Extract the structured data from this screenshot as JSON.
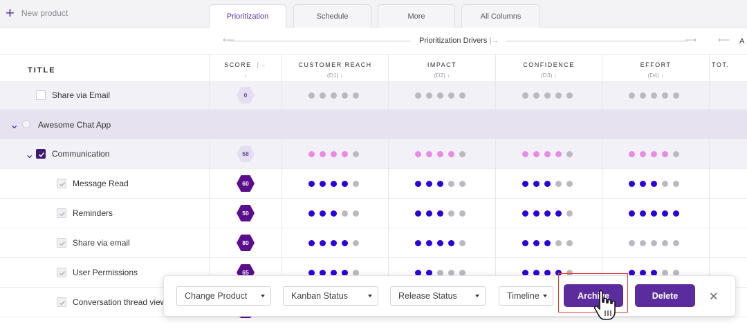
{
  "toolbar": {
    "new_product": "New product",
    "plus_icon": "plus-icon"
  },
  "tabs": [
    {
      "label": "Prioritization",
      "active": true
    },
    {
      "label": "Schedule",
      "active": false
    },
    {
      "label": "More",
      "active": false
    },
    {
      "label": "All Columns",
      "active": false
    }
  ],
  "drivers": {
    "label": "Prioritization Drivers",
    "label_arrow": "|→",
    "next_group_initial": "A"
  },
  "columns": {
    "title": "TITLE",
    "score": {
      "label": "SCORE",
      "arrow": "|→",
      "sort": "↓"
    },
    "drivers": [
      {
        "label": "CUSTOMER REACH",
        "sub": "(D1) ↓"
      },
      {
        "label": "IMPACT",
        "sub": "(D2) ↓"
      },
      {
        "label": "CONFIDENCE",
        "sub": "(D3) ↓"
      },
      {
        "label": "EFFORT",
        "sub": "(D4) ↓"
      }
    ],
    "total": "TOT."
  },
  "colors": {
    "accent": "#5b2c9e",
    "dot_blue": "#2b00e0",
    "dot_pink": "#e88be8",
    "dot_grey": "#b9b9c0",
    "hex_dark": "#5a0d8c",
    "hex_light": "#e4def0"
  },
  "rows": [
    {
      "kind": "item-partial",
      "title": "Share via Email",
      "score": "0",
      "ratings": [
        0,
        0,
        0,
        0
      ]
    },
    {
      "kind": "group",
      "title": "Awesome Chat App"
    },
    {
      "kind": "subgroup",
      "title": "Communication",
      "score": "58",
      "ratings": [
        4,
        4,
        4,
        4
      ]
    },
    {
      "kind": "item",
      "title": "Message Read",
      "score": "60",
      "ratings": [
        4,
        3,
        3,
        3
      ]
    },
    {
      "kind": "item",
      "title": "Reminders",
      "score": "50",
      "ratings": [
        3,
        3,
        4,
        5
      ]
    },
    {
      "kind": "item",
      "title": "Share via email",
      "score": "80",
      "ratings": [
        4,
        4,
        3,
        0
      ]
    },
    {
      "kind": "item",
      "title": "User Permissions",
      "score": "65",
      "ratings": [
        4,
        2,
        4,
        3
      ]
    },
    {
      "kind": "item",
      "title": "Conversation thread view",
      "score": "",
      "ratings": [
        0,
        0,
        0,
        0
      ]
    }
  ],
  "action_bar": {
    "change_product": "Change Product",
    "kanban_status": "Kanban Status",
    "release_status": "Release Status",
    "timeline": "Timeline",
    "archive": "Archive",
    "delete": "Delete",
    "close": "✕"
  }
}
